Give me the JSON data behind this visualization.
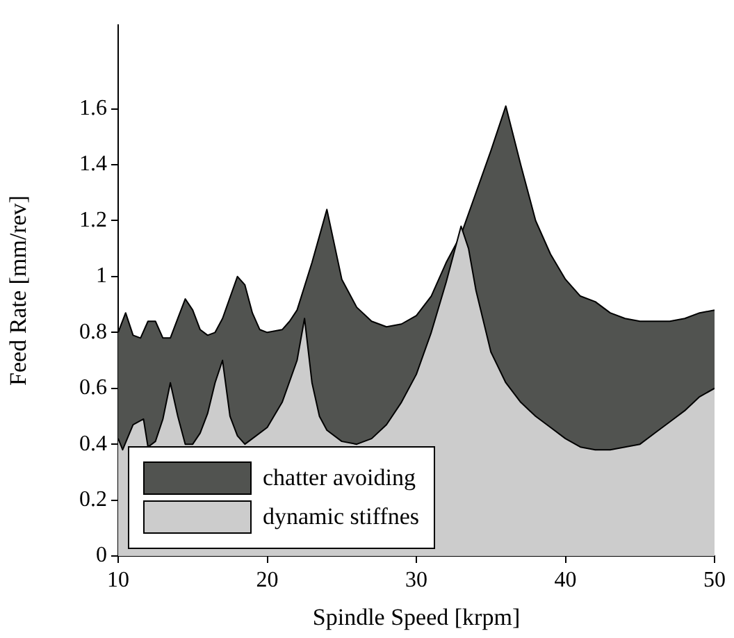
{
  "chart_data": {
    "type": "area",
    "xlabel": "Spindle Speed [krpm]",
    "ylabel": "Feed Rate [mm/rev]",
    "xlim": [
      10,
      50
    ],
    "ylim": [
      0,
      1.9
    ],
    "xticks": [
      10,
      20,
      30,
      40,
      50
    ],
    "yticks": [
      0,
      0.2,
      0.4,
      0.6,
      0.8,
      1,
      1.2,
      1.4,
      1.6
    ],
    "grid": false,
    "legend": "bottom left",
    "series": [
      {
        "name": "chatter avoiding",
        "color": "#515350",
        "x": [
          10,
          10.5,
          11,
          11.5,
          12,
          12.5,
          13,
          13.5,
          14,
          14.5,
          15,
          15.5,
          16,
          16.5,
          17,
          18,
          18.5,
          19,
          19.5,
          20,
          21,
          21.5,
          22,
          23,
          24,
          25,
          26,
          27,
          28,
          29,
          30,
          31,
          32,
          33,
          34,
          35,
          36,
          37,
          38,
          39,
          40,
          41,
          42,
          43,
          44,
          45,
          46,
          47,
          48,
          49,
          50
        ],
        "values": [
          0.8,
          0.87,
          0.79,
          0.78,
          0.84,
          0.84,
          0.78,
          0.78,
          0.85,
          0.92,
          0.88,
          0.81,
          0.79,
          0.8,
          0.85,
          1.0,
          0.97,
          0.87,
          0.81,
          0.8,
          0.81,
          0.84,
          0.88,
          1.05,
          1.24,
          0.99,
          0.89,
          0.84,
          0.82,
          0.83,
          0.86,
          0.93,
          1.05,
          1.15,
          1.3,
          1.45,
          1.61,
          1.4,
          1.2,
          1.08,
          0.99,
          0.93,
          0.91,
          0.87,
          0.85,
          0.84,
          0.84,
          0.84,
          0.85,
          0.87,
          0.88
        ]
      },
      {
        "name": "dynamic stiffnes",
        "color": "#cccccc",
        "x": [
          10,
          10.3,
          11,
          11.7,
          12,
          12.5,
          13,
          13.5,
          14,
          14.5,
          15,
          15.5,
          16,
          16.5,
          17,
          17.5,
          18,
          18.5,
          19,
          20,
          21,
          22,
          22.5,
          23,
          23.5,
          24,
          25,
          26,
          27,
          28,
          29,
          30,
          31,
          32,
          33,
          33.5,
          34,
          35,
          36,
          37,
          38,
          39,
          40,
          41,
          42,
          43,
          44,
          45,
          46,
          47,
          48,
          49,
          50
        ],
        "values": [
          0.42,
          0.38,
          0.47,
          0.49,
          0.39,
          0.41,
          0.49,
          0.62,
          0.5,
          0.4,
          0.4,
          0.44,
          0.51,
          0.62,
          0.7,
          0.5,
          0.43,
          0.4,
          0.42,
          0.46,
          0.55,
          0.7,
          0.85,
          0.62,
          0.5,
          0.45,
          0.41,
          0.4,
          0.42,
          0.47,
          0.55,
          0.65,
          0.8,
          0.98,
          1.18,
          1.1,
          0.95,
          0.73,
          0.62,
          0.55,
          0.5,
          0.46,
          0.42,
          0.39,
          0.38,
          0.38,
          0.39,
          0.4,
          0.44,
          0.48,
          0.52,
          0.57,
          0.6
        ]
      }
    ]
  }
}
